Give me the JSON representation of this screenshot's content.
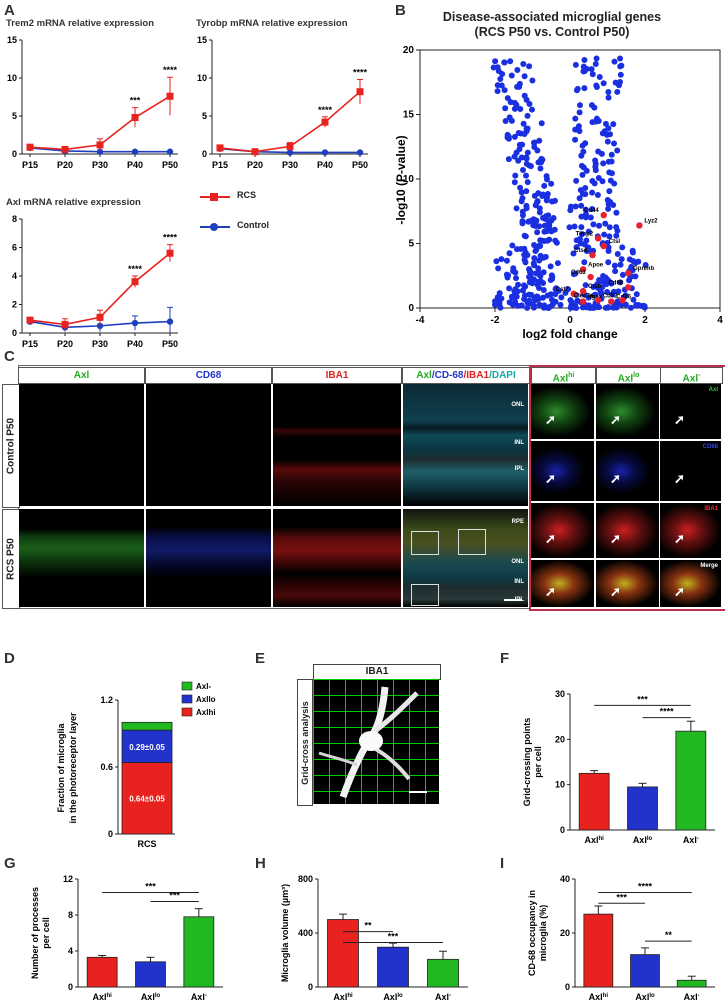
{
  "panels": {
    "A": "A",
    "B": "B",
    "C": "C",
    "D": "D",
    "E": "E",
    "F": "F",
    "G": "G",
    "H": "H",
    "I": "I"
  },
  "colors": {
    "rcs": "#e8221e",
    "control": "#1f3fbf",
    "green": "#22b822",
    "blue": "#2233cc"
  },
  "panelA": {
    "legend": {
      "rcs": "RCS",
      "control": "Control"
    },
    "xticks": [
      "P15",
      "P20",
      "P30",
      "P40",
      "P50"
    ],
    "plots": [
      {
        "title": "Trem2 mRNA relative expression",
        "yticks": [
          "0",
          "5",
          "10",
          "15"
        ],
        "ymax": 15,
        "rcs": [
          0.9,
          0.6,
          1.2,
          4.8,
          7.6
        ],
        "rcs_err": [
          0.3,
          0.3,
          0.8,
          1.3,
          2.5
        ],
        "ctrl": [
          0.8,
          0.4,
          0.3,
          0.3,
          0.3
        ],
        "sig": [
          "",
          "",
          "",
          "***",
          "****"
        ]
      },
      {
        "title": "Tyrobp mRNA relative expression",
        "yticks": [
          "0",
          "5",
          "10",
          "15"
        ],
        "ymax": 15,
        "rcs": [
          0.8,
          0.3,
          1.0,
          4.2,
          8.2
        ],
        "rcs_err": [
          0.3,
          0.2,
          0.5,
          0.7,
          1.6
        ],
        "ctrl": [
          0.7,
          0.3,
          0.2,
          0.2,
          0.2
        ],
        "sig": [
          "",
          "",
          "",
          "****",
          "****"
        ]
      },
      {
        "title": "Axl mRNA relative expression",
        "yticks": [
          "0",
          "2",
          "4",
          "6",
          "8"
        ],
        "ymax": 8,
        "rcs": [
          0.9,
          0.6,
          1.1,
          3.6,
          5.6
        ],
        "rcs_err": [
          0.2,
          0.4,
          0.5,
          0.4,
          0.6
        ],
        "ctrl": [
          0.8,
          0.4,
          0.5,
          0.7,
          0.8
        ],
        "ctrl_err": [
          0.2,
          0.3,
          0.4,
          0.5,
          1.0
        ],
        "sig": [
          "",
          "",
          "",
          "****",
          "****"
        ]
      }
    ]
  },
  "panelB": {
    "title1": "Disease-associated microglial genes",
    "title2": "(RCS P50 vs. Control P50)",
    "ylabel": "-log10 (P-value)",
    "xlabel": "log2 fold change",
    "xticks": [
      "-4",
      "-2",
      "0",
      "2",
      "4"
    ],
    "yticks": [
      "0",
      "5",
      "10",
      "15",
      "20"
    ],
    "genes": [
      "Cd44",
      "Lyz2",
      "Timp2",
      "Ctsl",
      "Ctsd",
      "Apoe",
      "Cd63",
      "Gpnmb",
      "Cd68",
      "Ctsb",
      "Cst7",
      "Itgax",
      "Clec7a",
      "Cd86",
      "Cd52"
    ]
  },
  "chart_data": [
    {
      "type": "line",
      "title": "Trem2 mRNA relative expression",
      "categories": [
        "P15",
        "P20",
        "P30",
        "P40",
        "P50"
      ],
      "series": [
        {
          "name": "RCS",
          "values": [
            0.9,
            0.6,
            1.2,
            4.8,
            7.6
          ]
        },
        {
          "name": "Control",
          "values": [
            0.8,
            0.4,
            0.3,
            0.3,
            0.3
          ]
        }
      ],
      "ylim": [
        0,
        15
      ]
    },
    {
      "type": "line",
      "title": "Tyrobp mRNA relative expression",
      "categories": [
        "P15",
        "P20",
        "P30",
        "P40",
        "P50"
      ],
      "series": [
        {
          "name": "RCS",
          "values": [
            0.8,
            0.3,
            1.0,
            4.2,
            8.2
          ]
        },
        {
          "name": "Control",
          "values": [
            0.7,
            0.3,
            0.2,
            0.2,
            0.2
          ]
        }
      ],
      "ylim": [
        0,
        15
      ]
    },
    {
      "type": "line",
      "title": "Axl mRNA relative expression",
      "categories": [
        "P15",
        "P20",
        "P30",
        "P40",
        "P50"
      ],
      "series": [
        {
          "name": "RCS",
          "values": [
            0.9,
            0.6,
            1.1,
            3.6,
            5.6
          ]
        },
        {
          "name": "Control",
          "values": [
            0.8,
            0.4,
            0.5,
            0.7,
            0.8
          ]
        }
      ],
      "ylim": [
        0,
        8
      ]
    },
    {
      "type": "scatter",
      "title": "Disease-associated microglial genes (RCS P50 vs. Control P50)",
      "xlabel": "log2 fold change",
      "ylabel": "-log10 (P-value)",
      "xlim": [
        -4,
        4
      ],
      "ylim": [
        0,
        20
      ]
    },
    {
      "type": "bar",
      "title": "Fraction of microglia in the photoreceptor layer",
      "categories": [
        "RCS"
      ],
      "series": [
        {
          "name": "Axlhi",
          "values": [
            0.64
          ]
        },
        {
          "name": "Axllo",
          "values": [
            0.29
          ]
        },
        {
          "name": "Axl-",
          "values": [
            0.07
          ]
        }
      ],
      "ylim": [
        0,
        1.2
      ]
    },
    {
      "type": "bar",
      "ylabel": "Grid-crossing points per cell",
      "categories": [
        "Axlhi",
        "Axllo",
        "Axl-"
      ],
      "values": [
        12.5,
        9.5,
        21.8
      ],
      "ylim": [
        0,
        30
      ]
    },
    {
      "type": "bar",
      "ylabel": "Number of processes per cell",
      "categories": [
        "Axlhi",
        "Axllo",
        "Axl-"
      ],
      "values": [
        3.3,
        2.8,
        7.8
      ],
      "ylim": [
        0,
        12
      ]
    },
    {
      "type": "bar",
      "ylabel": "Microglia volume (µm³)",
      "categories": [
        "Axlhi",
        "Axllo",
        "Axl-"
      ],
      "values": [
        500,
        295,
        205
      ],
      "ylim": [
        0,
        800
      ]
    },
    {
      "type": "bar",
      "ylabel": "CD-68 occupancy in microglia (%)",
      "categories": [
        "Axlhi",
        "Axllo",
        "Axl-"
      ],
      "values": [
        27,
        12,
        2.5
      ],
      "ylim": [
        0,
        40
      ]
    }
  ],
  "panelC": {
    "columns": [
      "Axl",
      "CD68",
      "IBA1"
    ],
    "merge_parts": [
      "Axl",
      "/CD-68",
      "/IBA1",
      "/DAPI"
    ],
    "inset_cols": [
      "Axl",
      "Axl",
      "Axl"
    ],
    "inset_sup": [
      "hi",
      "lo",
      "-"
    ],
    "rows": [
      "Control P50",
      "RCS P50"
    ],
    "layers_top": [
      "ONL",
      "INL",
      "IPL"
    ],
    "layers_bottom": [
      "RPE",
      "ONL",
      "INL",
      "IPL"
    ],
    "inset_tags": [
      "Axl",
      "CD68",
      "IBA1",
      "Merge"
    ]
  },
  "panelD": {
    "ylabel1": "Fraction of microglia",
    "ylabel2": "in the photoreceptor layer",
    "yticks": [
      "0",
      "0.6",
      "1.2"
    ],
    "xlabel": "RCS",
    "labels": [
      "0.29±0.05",
      "0.64±0.05"
    ],
    "legend": [
      "Axl-",
      "Axllo",
      "Axlhi"
    ]
  },
  "panelE": {
    "header": "IBA1",
    "side": "Grid-cross analysis"
  },
  "panelF": {
    "ylabel1": "Grid-crossing points",
    "ylabel2": "per cell",
    "yticks": [
      "0",
      "10",
      "20",
      "30"
    ],
    "sig": [
      "***",
      "****"
    ]
  },
  "panelG": {
    "ylabel1": "Number of processes",
    "ylabel2": "per cell",
    "yticks": [
      "0",
      "4",
      "8",
      "12"
    ],
    "sig": [
      "***",
      "***"
    ]
  },
  "panelH": {
    "ylabel": "Microglia volume (µm³)",
    "yticks": [
      "0",
      "400",
      "800"
    ],
    "sig": [
      "**",
      "***"
    ]
  },
  "panelI": {
    "ylabel1": "CD-68 occupancy in",
    "ylabel2": "microglia (%)",
    "yticks": [
      "0",
      "20",
      "40"
    ],
    "sig": [
      "***",
      "****",
      "**"
    ]
  },
  "bar_xlabels": {
    "base": "Axl",
    "sup": [
      "hi",
      "lo",
      "-"
    ]
  }
}
